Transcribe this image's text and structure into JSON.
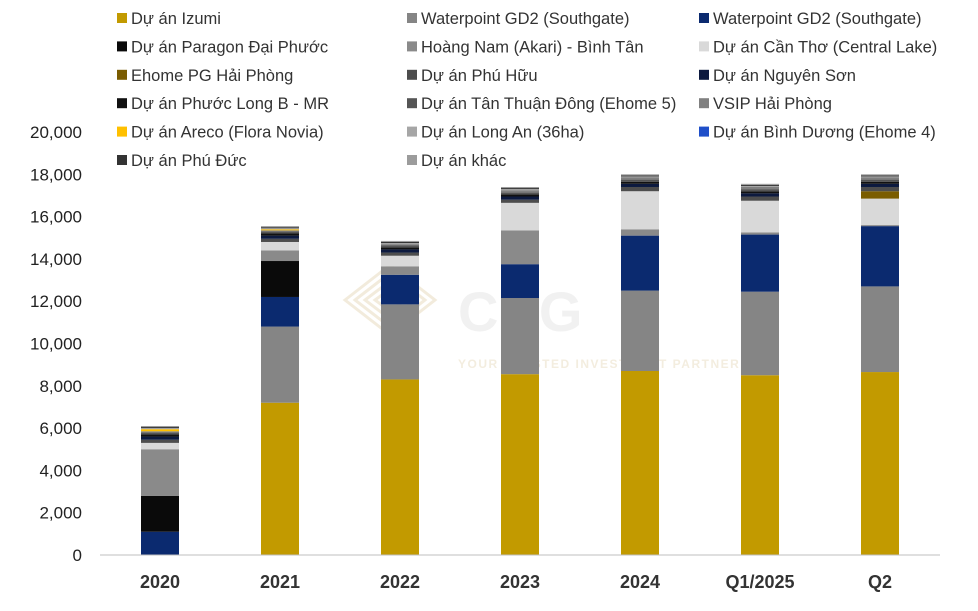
{
  "chart_data": {
    "type": "bar",
    "stacked": true,
    "categories": [
      "2020",
      "2021",
      "2022",
      "2023",
      "2024",
      "Q1/2025",
      "Q2"
    ],
    "ylim": [
      0,
      20000
    ],
    "yticks": [
      0,
      2000,
      4000,
      6000,
      8000,
      10000,
      12000,
      14000,
      16000,
      18000,
      20000
    ],
    "ytick_labels": [
      "0",
      "2,000",
      "4,000",
      "6,000",
      "8,000",
      "10,000",
      "12,000",
      "14,000",
      "16,000",
      "18,000",
      "20,000"
    ],
    "grid": false,
    "legend_position": "top",
    "series": [
      {
        "name": "Dự án Izumi",
        "color": "#C29A00",
        "values": [
          0,
          7200,
          8300,
          8550,
          8700,
          8500,
          8650
        ]
      },
      {
        "name": "Waterpoint GD2 (Southgate)",
        "color": "#858585",
        "values": [
          0,
          3600,
          3550,
          3600,
          3800,
          3950,
          4050
        ]
      },
      {
        "name": "Waterpoint GD2 (Southgate)",
        "color": "#0B2A6F",
        "values": [
          1100,
          1400,
          1400,
          1600,
          2600,
          2700,
          2850
        ]
      },
      {
        "name": "Dự án Paragon Đại Phước",
        "color": "#0A0A0A",
        "values": [
          1700,
          1700,
          0,
          0,
          0,
          0,
          0
        ]
      },
      {
        "name": "Hoàng Nam (Akari) - Bình Tân",
        "color": "#8A8A8A",
        "values": [
          2200,
          500,
          400,
          1600,
          300,
          100,
          50
        ]
      },
      {
        "name": "Dự án Cần Thơ (Central Lake)",
        "color": "#D9D9D9",
        "values": [
          300,
          400,
          500,
          1300,
          1800,
          1500,
          1250
        ]
      },
      {
        "name": "Ehome PG Hải Phòng",
        "color": "#7A5C00",
        "values": [
          0,
          0,
          0,
          0,
          0,
          0,
          350
        ]
      },
      {
        "name": "Dự án Phú Hữu",
        "color": "#4D4D4D",
        "values": [
          150,
          150,
          150,
          150,
          200,
          200,
          200
        ]
      },
      {
        "name": "Dự án Nguyên Sơn",
        "color": "#0D1A3F",
        "values": [
          150,
          150,
          150,
          150,
          150,
          150,
          150
        ]
      },
      {
        "name": "Dự án Phước Long B - MR",
        "color": "#111111",
        "values": [
          100,
          100,
          100,
          100,
          100,
          100,
          100
        ]
      },
      {
        "name": "Dự án Tân Thuận Đông (Ehome 5)",
        "color": "#555555",
        "values": [
          100,
          100,
          100,
          100,
          100,
          100,
          100
        ]
      },
      {
        "name": "VSIP Hải Phòng",
        "color": "#808080",
        "values": [
          50,
          50,
          50,
          100,
          100,
          100,
          100
        ]
      },
      {
        "name": "Dự án Areco (Flora Novia)",
        "color": "#FFC000",
        "values": [
          100,
          50,
          0,
          0,
          0,
          0,
          0
        ]
      },
      {
        "name": "Dự án Long An (36ha)",
        "color": "#A6A6A6",
        "values": [
          50,
          50,
          50,
          50,
          50,
          50,
          50
        ]
      },
      {
        "name": "Dự án Bình Dương (Ehome 4)",
        "color": "#1F4FC9",
        "values": [
          0,
          0,
          0,
          0,
          0,
          0,
          0
        ]
      },
      {
        "name": "Dự án Phú Đức",
        "color": "#333333",
        "values": [
          50,
          50,
          50,
          50,
          50,
          50,
          50
        ]
      },
      {
        "name": "Dự án khác",
        "color": "#9C9C9C",
        "values": [
          50,
          50,
          50,
          50,
          50,
          50,
          50
        ]
      }
    ]
  },
  "watermark": {
    "brand": "CKG",
    "tagline": "YOUR TRUSTED INVESTMENT PARTNER",
    "color": "#E8D9B5"
  }
}
